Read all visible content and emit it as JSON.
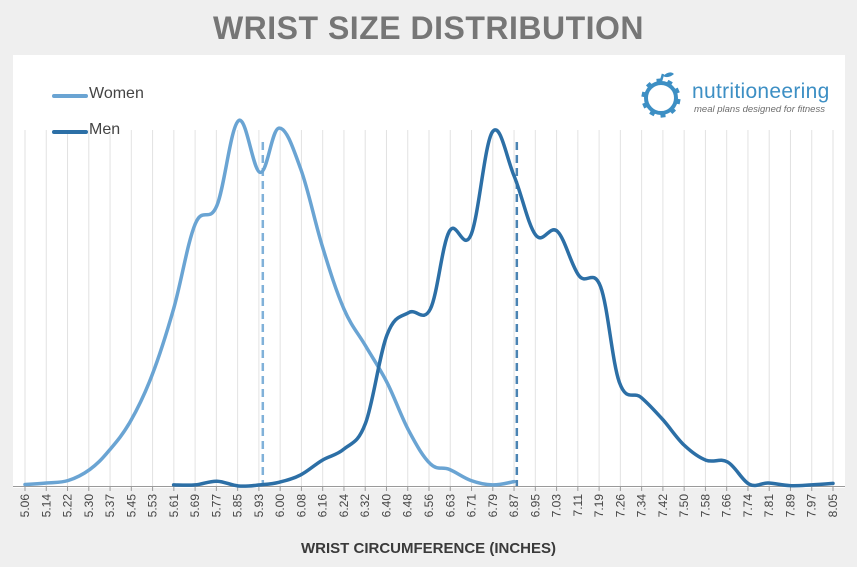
{
  "colors": {
    "women": "#6aa4d3",
    "men": "#2c6fa6",
    "background": "#efefef",
    "plot": "#ffffff",
    "title": "#767676",
    "logo": "#3d8fc4"
  },
  "logo": {
    "name": "nutritioneering",
    "tagline": "meal plans designed for fitness",
    "icon": "apple-gear-icon"
  },
  "chart_data": {
    "type": "line",
    "title": "WRIST SIZE DISTRIBUTION",
    "xlabel": "WRIST CIRCUMFERENCE (INCHES)",
    "ylabel": "",
    "legend_position": "top-left",
    "grid": "vertical",
    "categories": [
      "5.06",
      "5.14",
      "5.22",
      "5.30",
      "5.37",
      "5.45",
      "5.53",
      "5.61",
      "5.69",
      "5.77",
      "5.85",
      "5.93",
      "6.00",
      "6.08",
      "6.16",
      "6.24",
      "6.32",
      "6.40",
      "6.48",
      "6.56",
      "6.63",
      "6.71",
      "6.79",
      "6.87",
      "6.95",
      "7.03",
      "7.11",
      "7.19",
      "7.26",
      "7.34",
      "7.42",
      "7.50",
      "7.58",
      "7.66",
      "7.74",
      "7.81",
      "7.89",
      "7.97",
      "8.05"
    ],
    "ylim": [
      0,
      100
    ],
    "series": [
      {
        "name": "Women",
        "x": [
          5.06,
          5.14,
          5.22,
          5.3,
          5.37,
          5.45,
          5.53,
          5.61,
          5.69,
          5.77,
          5.85,
          5.93,
          6.0,
          6.08,
          6.16,
          6.24,
          6.32,
          6.4,
          6.48,
          6.56,
          6.63,
          6.71,
          6.79,
          6.87
        ],
        "values": [
          0.4,
          0.8,
          1.5,
          4.5,
          9.5,
          17.5,
          30,
          48,
          71,
          76,
          99,
          85,
          97,
          86,
          65,
          48,
          38,
          28,
          15,
          6,
          4.5,
          1.5,
          0.3,
          1.2
        ],
        "mean": 5.94
      },
      {
        "name": "Men",
        "x": [
          5.61,
          5.69,
          5.77,
          5.85,
          5.93,
          6.0,
          6.08,
          6.16,
          6.24,
          6.32,
          6.4,
          6.48,
          6.56,
          6.63,
          6.71,
          6.79,
          6.87,
          6.95,
          7.03,
          7.11,
          7.19,
          7.26,
          7.34,
          7.42,
          7.5,
          7.58,
          7.66,
          7.74,
          7.81,
          7.89,
          7.97,
          8.05
        ],
        "values": [
          0.3,
          0.3,
          1.3,
          0,
          0.3,
          1,
          3,
          7,
          10,
          17,
          41,
          47,
          48,
          69,
          68,
          96,
          84,
          68,
          69,
          57,
          54,
          28,
          24,
          18,
          11,
          7,
          6.5,
          0.5,
          0.8,
          0.1,
          0.3,
          0.7
        ],
        "mean": 6.88
      }
    ]
  }
}
